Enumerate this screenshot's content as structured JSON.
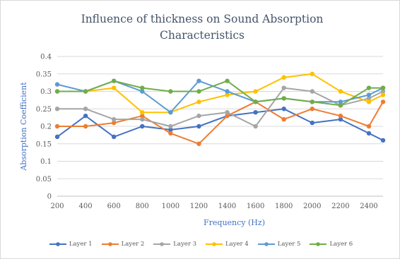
{
  "chart_data": {
    "type": "line",
    "title": "Influence of thickness on Sound Absorption Characteristics",
    "xlabel": "Frequency (Hz)",
    "ylabel": "Absorption Coefficient",
    "x": [
      200,
      400,
      600,
      800,
      1000,
      1200,
      1400,
      1600,
      1800,
      2000,
      2200,
      2400,
      2500
    ],
    "xticks": [
      "200",
      "400",
      "600",
      "800",
      "1000",
      "1200",
      "1400",
      "1600",
      "1800",
      "2000",
      "2200",
      "2400"
    ],
    "ylim": [
      0,
      0.4
    ],
    "yticks": [
      "0",
      "0.05",
      "0.1",
      "0.15",
      "0.2",
      "0.25",
      "0.3",
      "0.35",
      "0.4"
    ],
    "grid": true,
    "legend_position": "bottom",
    "series": [
      {
        "name": "Layer 1",
        "color": "#4472c4",
        "values": [
          0.17,
          0.23,
          0.17,
          0.2,
          0.19,
          0.2,
          0.23,
          0.24,
          0.25,
          0.21,
          0.22,
          0.18,
          0.16
        ]
      },
      {
        "name": "Layer 2",
        "color": "#ed7d31",
        "values": [
          0.2,
          0.2,
          0.21,
          0.23,
          0.18,
          0.15,
          0.23,
          0.27,
          0.22,
          0.25,
          0.23,
          0.2,
          0.27
        ]
      },
      {
        "name": "Layer 3",
        "color": "#a5a5a5",
        "values": [
          0.25,
          0.25,
          0.22,
          0.22,
          0.2,
          0.23,
          0.24,
          0.2,
          0.31,
          0.3,
          0.26,
          0.28,
          0.3
        ]
      },
      {
        "name": "Layer 4",
        "color": "#ffc000",
        "values": [
          0.3,
          0.3,
          0.31,
          0.24,
          0.24,
          0.27,
          0.29,
          0.3,
          0.34,
          0.35,
          0.3,
          0.27,
          0.29
        ]
      },
      {
        "name": "Layer 5",
        "color": "#5b9bd5",
        "values": [
          0.32,
          0.3,
          0.33,
          0.3,
          0.24,
          0.33,
          0.3,
          0.27,
          0.28,
          0.27,
          0.27,
          0.29,
          0.31
        ]
      },
      {
        "name": "Layer 6",
        "color": "#70ad47",
        "values": [
          0.3,
          0.3,
          0.33,
          0.31,
          0.3,
          0.3,
          0.33,
          0.27,
          0.28,
          0.27,
          0.26,
          0.31,
          0.31
        ]
      }
    ]
  }
}
